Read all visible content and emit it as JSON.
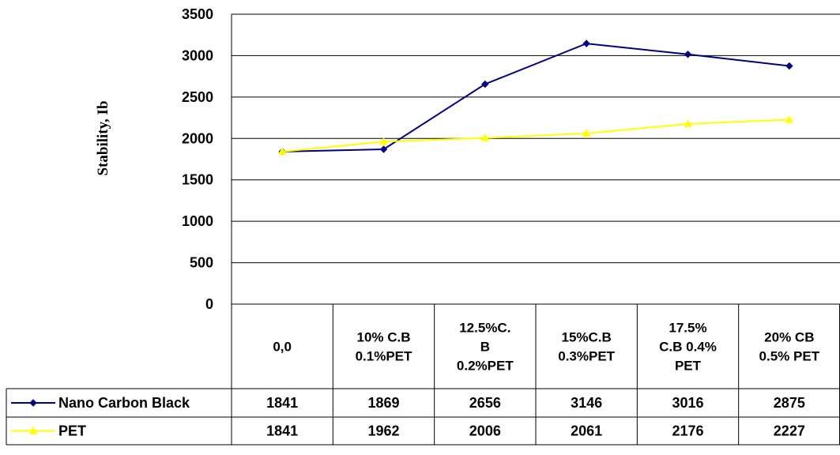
{
  "chart_data": {
    "type": "line",
    "ylabel": "Stability, Ib",
    "ylim": [
      0,
      3500
    ],
    "yticks": [
      0,
      500,
      1000,
      1500,
      2000,
      2500,
      3000,
      3500
    ],
    "grid": true,
    "legend": "data-table-below",
    "categories": [
      [
        "0,0"
      ],
      [
        "10% C.B",
        "0.1%PET"
      ],
      [
        "12.5%C.",
        "B",
        "0.2%PET"
      ],
      [
        "15%C.B",
        "0.3%PET"
      ],
      [
        "17.5%",
        "C.B  0.4%",
        "PET"
      ],
      [
        "20% CB",
        "0.5% PET"
      ]
    ],
    "series": [
      {
        "name": "Nano Carbon Black",
        "color": "#000080",
        "marker": "diamond",
        "values": [
          1841,
          1869,
          2656,
          3146,
          3016,
          2875
        ]
      },
      {
        "name": "PET",
        "color": "#FFFF00",
        "marker": "triangle",
        "values": [
          1841,
          1962,
          2006,
          2061,
          2176,
          2227
        ]
      }
    ]
  }
}
